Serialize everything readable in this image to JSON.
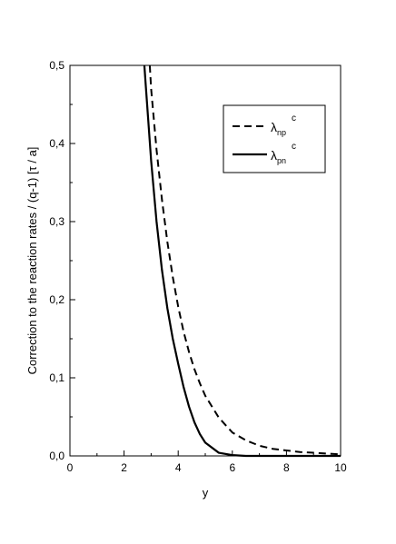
{
  "chart_data": {
    "type": "line",
    "xlabel": "y",
    "ylabel": "Correction to the reaction rates / (q-1) [τ / a]",
    "xlim": [
      0,
      10
    ],
    "ylim": [
      0,
      0.5
    ],
    "x_ticks": [
      "0",
      "2",
      "4",
      "6",
      "8",
      "10"
    ],
    "y_ticks": [
      "0,0",
      "0,1",
      "0,2",
      "0,3",
      "0,4",
      "0,5"
    ],
    "grid": false,
    "legend_position": "top-right",
    "colors": {
      "axis": "#000000",
      "line": "#000000"
    },
    "series": [
      {
        "name_base": "λ",
        "name_sub": "np",
        "name_sup": "c",
        "line_style": "dashed",
        "x": [
          2.95,
          3.0,
          3.2,
          3.4,
          3.6,
          3.8,
          4.0,
          4.2,
          4.4,
          4.6,
          4.8,
          5.0,
          5.5,
          6.0,
          6.5,
          7.0,
          7.5,
          8.0,
          8.5,
          9.0,
          9.5,
          10.0
        ],
        "y": [
          0.5,
          0.47,
          0.392,
          0.328,
          0.274,
          0.229,
          0.191,
          0.159,
          0.133,
          0.111,
          0.093,
          0.077,
          0.049,
          0.03,
          0.02,
          0.013,
          0.009,
          0.007,
          0.005,
          0.004,
          0.003,
          0.002
        ]
      },
      {
        "name_base": "λ",
        "name_sub": "pn",
        "name_sup": "c",
        "line_style": "solid",
        "x": [
          2.75,
          2.8,
          3.0,
          3.2,
          3.4,
          3.6,
          3.8,
          4.0,
          4.2,
          4.4,
          4.6,
          4.8,
          5.0,
          5.5,
          6.0,
          6.5,
          7.0,
          8.0,
          9.0,
          10.0
        ],
        "y": [
          0.5,
          0.475,
          0.378,
          0.3,
          0.238,
          0.189,
          0.15,
          0.118,
          0.088,
          0.063,
          0.043,
          0.028,
          0.017,
          0.004,
          0.001,
          0.0,
          0.0,
          0.0,
          0.0,
          0.0
        ]
      }
    ]
  }
}
